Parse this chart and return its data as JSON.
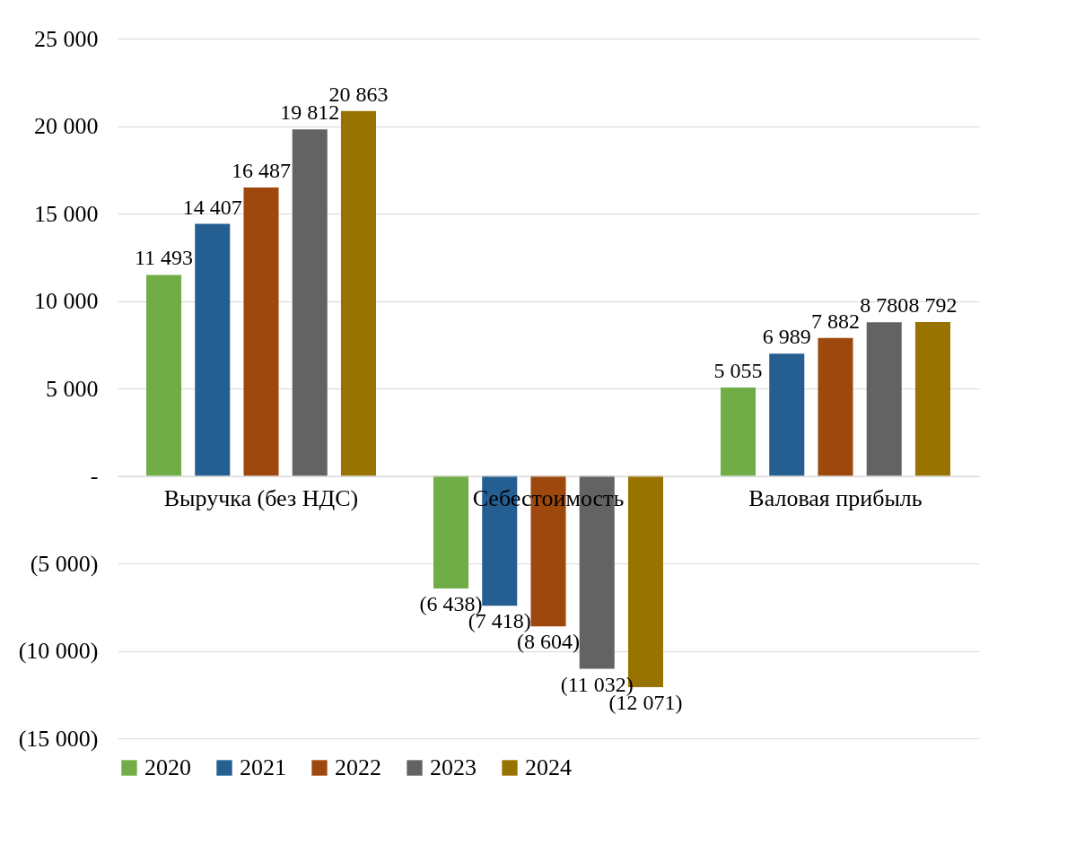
{
  "chart_data": {
    "type": "bar",
    "categories": [
      "Выручка (без НДС)",
      "Себестоимость",
      "Валовая прибыль"
    ],
    "series": [
      {
        "name": "2020",
        "color": "#70ad47",
        "values": [
          11493,
          -6438,
          5055
        ],
        "value_labels": [
          "11 493",
          "(6 438)",
          "5 055"
        ]
      },
      {
        "name": "2021",
        "color": "#255e91",
        "values": [
          14407,
          -7418,
          6989
        ],
        "value_labels": [
          "14 407",
          "(7 418)",
          "6 989"
        ]
      },
      {
        "name": "2022",
        "color": "#9e480e",
        "values": [
          16487,
          -8604,
          7882
        ],
        "value_labels": [
          "16 487",
          "(8 604)",
          "7 882"
        ]
      },
      {
        "name": "2023",
        "color": "#636363",
        "values": [
          19812,
          -11032,
          8780
        ],
        "value_labels": [
          "19 812",
          "(11 032)",
          "8 780"
        ]
      },
      {
        "name": "2024",
        "color": "#997300",
        "values": [
          20863,
          -12071,
          8792
        ],
        "value_labels": [
          "20 863",
          "(12 071)",
          "8 792"
        ]
      }
    ],
    "ylim": [
      -15000,
      25000
    ],
    "yticks": [
      {
        "value": -15000,
        "label": "(15 000)"
      },
      {
        "value": -10000,
        "label": "(10 000)"
      },
      {
        "value": -5000,
        "label": "(5 000)"
      },
      {
        "value": 0,
        "label": "-"
      },
      {
        "value": 5000,
        "label": "5 000"
      },
      {
        "value": 10000,
        "label": "10 000"
      },
      {
        "value": 15000,
        "label": "15 000"
      },
      {
        "value": 20000,
        "label": "20 000"
      },
      {
        "value": 25000,
        "label": "25 000"
      }
    ],
    "grid": "y",
    "legend": "bottom"
  }
}
